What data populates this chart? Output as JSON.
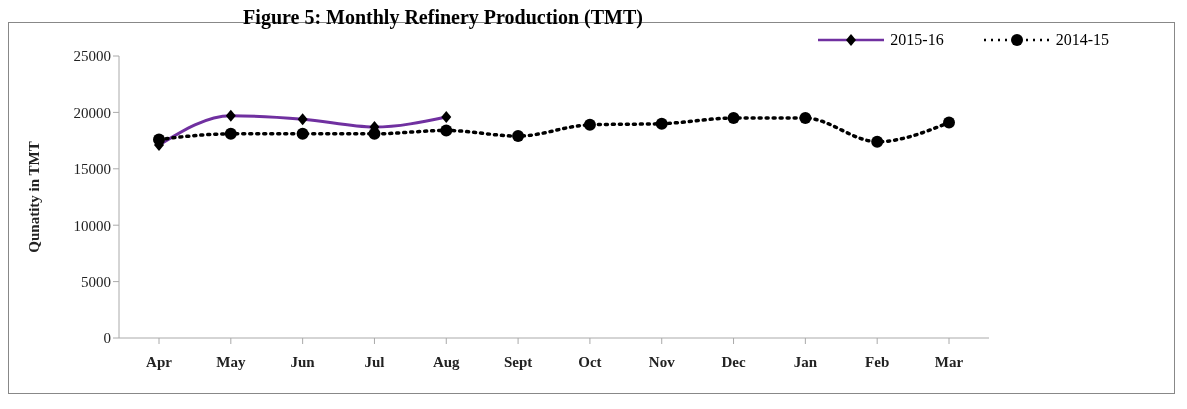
{
  "chart_data": {
    "type": "line",
    "title": "Figure 5: Monthly Refinery Production (TMT)",
    "ylabel": "Qunatity in TMT",
    "categories": [
      "Apr",
      "May",
      "Jun",
      "Jul",
      "Aug",
      "Sept",
      "Oct",
      "Nov",
      "Dec",
      "Jan",
      "Feb",
      "Mar"
    ],
    "series": [
      {
        "name": "2015-16",
        "color": "#7030a0",
        "marker": "diamond",
        "line_style": "solid",
        "values": [
          17100,
          19700,
          19400,
          18700,
          19600,
          null,
          null,
          null,
          null,
          null,
          null,
          null
        ]
      },
      {
        "name": "2014-15",
        "color": "#000000",
        "marker": "circle",
        "line_style": "dotted",
        "values": [
          17600,
          18100,
          18100,
          18100,
          18400,
          17900,
          18900,
          19000,
          19500,
          19500,
          17400,
          19100
        ]
      }
    ],
    "ylim": [
      0,
      25000
    ],
    "yticks": [
      0,
      5000,
      10000,
      15000,
      20000,
      25000
    ],
    "grid": false,
    "legend": "top right"
  }
}
